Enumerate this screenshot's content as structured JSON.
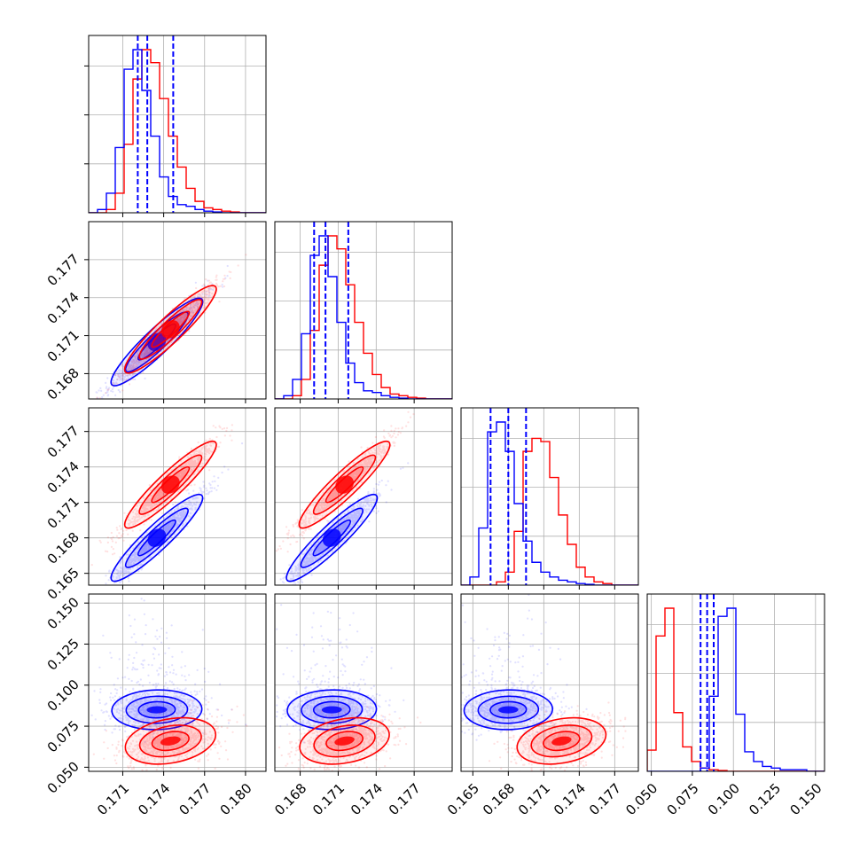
{
  "colors": {
    "series_a": "#0000ff",
    "series_b": "#ff0000",
    "grid": "#b0b0b0",
    "frame": "#000000"
  },
  "chart_data": {
    "type": "corner",
    "grid": true,
    "series": [
      {
        "color": "#0000ff",
        "means": [
          0.1735,
          0.1705,
          0.168,
          0.085
        ],
        "quantiles": [
          [
            0.1721,
            0.1728,
            0.1747
          ],
          [
            0.1691,
            0.17,
            0.1718
          ],
          [
            0.1665,
            0.168,
            0.1695
          ],
          [
            0.08,
            0.084,
            0.088
          ]
        ]
      },
      {
        "color": "#ff0000",
        "means": [
          0.1745,
          0.1715,
          0.1725,
          0.066
        ]
      }
    ],
    "variables": [
      {
        "range": [
          0.1685,
          0.1815
        ],
        "ticks": [
          "0.171",
          "0.174",
          "0.177",
          "0.180"
        ]
      },
      {
        "range": [
          0.166,
          0.18
        ],
        "ticks": [
          "0.168",
          "0.171",
          "0.174",
          "0.177"
        ]
      },
      {
        "range": [
          0.164,
          0.179
        ],
        "ticks": [
          "0.165",
          "0.168",
          "0.171",
          "0.174",
          "0.177"
        ]
      },
      {
        "range": [
          0.0475,
          0.1555
        ],
        "ticks": [
          "0.050",
          "0.075",
          "0.100",
          "0.125",
          "0.150"
        ]
      }
    ],
    "histograms": [
      {
        "edges": [
          0.1685,
          0.1815
        ],
        "series_a": [
          0,
          0.02,
          0.12,
          0.4,
          0.88,
          1.0,
          0.75,
          0.47,
          0.22,
          0.1,
          0.05,
          0.04,
          0.02,
          0.01,
          0.005,
          0,
          0,
          0,
          0,
          0
        ],
        "series_b": [
          0,
          0,
          0.02,
          0.12,
          0.42,
          0.82,
          1.0,
          0.92,
          0.7,
          0.47,
          0.28,
          0.15,
          0.07,
          0.03,
          0.02,
          0.01,
          0.005,
          0,
          0,
          0
        ]
      },
      {
        "edges": [
          0.166,
          0.18
        ],
        "series_a": [
          0,
          0.02,
          0.12,
          0.4,
          0.88,
          1.0,
          0.75,
          0.47,
          0.22,
          0.1,
          0.05,
          0.04,
          0.02,
          0.01,
          0.005,
          0,
          0,
          0,
          0,
          0
        ],
        "series_b": [
          0,
          0,
          0.02,
          0.12,
          0.42,
          0.82,
          1.0,
          0.92,
          0.7,
          0.47,
          0.28,
          0.15,
          0.07,
          0.03,
          0.02,
          0.01,
          0.005,
          0,
          0,
          0
        ]
      },
      {
        "edges": [
          0.164,
          0.179
        ],
        "series_a": [
          0,
          0.05,
          0.35,
          0.94,
          1.0,
          0.82,
          0.5,
          0.27,
          0.14,
          0.08,
          0.05,
          0.03,
          0.02,
          0.01,
          0.005,
          0,
          0,
          0,
          0,
          0
        ],
        "series_b": [
          0,
          0,
          0,
          0,
          0.02,
          0.08,
          0.33,
          0.82,
          0.9,
          0.88,
          0.66,
          0.43,
          0.25,
          0.11,
          0.05,
          0.02,
          0.01,
          0,
          0,
          0
        ]
      },
      {
        "edges": [
          0.0475,
          0.1555
        ],
        "series_a": [
          0,
          0,
          0,
          0,
          0,
          0,
          0.02,
          0.46,
          0.95,
          1.0,
          0.35,
          0.12,
          0.06,
          0.03,
          0.02,
          0.01,
          0.01,
          0.01,
          0,
          0
        ],
        "series_b": [
          0.13,
          0.83,
          1.0,
          0.36,
          0.15,
          0.06,
          0.02,
          0.01,
          0.005,
          0,
          0,
          0,
          0,
          0,
          0,
          0,
          0,
          0,
          0,
          0
        ]
      }
    ]
  }
}
